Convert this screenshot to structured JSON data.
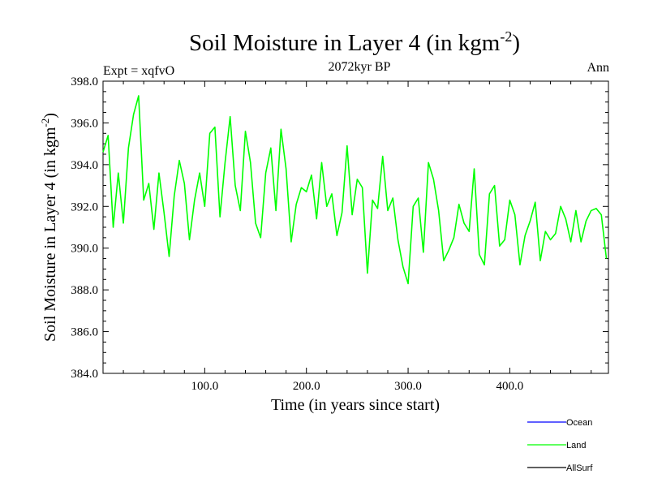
{
  "chart_data": {
    "type": "line",
    "title": "Soil Moisture in Layer 4 (in kgm",
    "title_sup": "-2",
    "title_close": ")",
    "subtitle": "2072kyr BP",
    "left_label": "Expt = xqfvO",
    "right_label": "Ann",
    "xlabel": "Time (in years since start)",
    "ylabel": "Soil Moisture in Layer 4 (in kgm",
    "ylabel_sup": "-2",
    "ylabel_close": ")",
    "xlim": [
      0,
      497
    ],
    "ylim": [
      384,
      398
    ],
    "x_ticks": [
      100,
      200,
      300,
      400
    ],
    "x_tick_labels": [
      "100.0",
      "200.0",
      "300.0",
      "400.0"
    ],
    "y_ticks": [
      384,
      386,
      388,
      390,
      392,
      394,
      396,
      398
    ],
    "y_tick_labels": [
      "384.0",
      "386.0",
      "388.0",
      "390.0",
      "392.0",
      "394.0",
      "396.0",
      "398.0"
    ],
    "legend": [
      {
        "name": "Ocean",
        "color": "#0000ff"
      },
      {
        "name": "Land",
        "color": "#00ff00"
      },
      {
        "name": "AllSurf",
        "color": "#000000"
      }
    ],
    "series": [
      {
        "name": "Land",
        "color": "#00ff00",
        "x_start": 0,
        "x_step": 5,
        "values": [
          394.6,
          395.4,
          391.0,
          393.6,
          391.2,
          394.8,
          396.4,
          397.3,
          392.3,
          393.1,
          390.9,
          393.6,
          391.7,
          389.6,
          392.5,
          394.2,
          393.1,
          390.4,
          392.3,
          393.6,
          392.0,
          395.5,
          395.8,
          391.5,
          394.1,
          396.3,
          393.0,
          391.8,
          395.6,
          394.1,
          391.2,
          390.5,
          393.6,
          394.8,
          391.8,
          395.7,
          393.8,
          390.3,
          392.1,
          392.9,
          392.7,
          393.5,
          391.4,
          394.1,
          392.0,
          392.6,
          390.6,
          391.7,
          394.9,
          391.6,
          393.3,
          392.9,
          388.8,
          392.3,
          391.9,
          394.4,
          391.8,
          392.4,
          390.4,
          389.1,
          388.3,
          392.0,
          392.4,
          389.8,
          394.1,
          393.3,
          391.8,
          389.4,
          389.9,
          390.5,
          392.1,
          391.2,
          390.8,
          393.8,
          389.7,
          389.2,
          392.6,
          393.0,
          390.1,
          390.4,
          392.3,
          391.6,
          389.2,
          390.6,
          391.3,
          392.2,
          389.4,
          390.8,
          390.4,
          390.7,
          392.0,
          391.4,
          390.3,
          391.8,
          390.3,
          391.3,
          391.8,
          391.9,
          391.6,
          389.5
        ]
      }
    ]
  }
}
